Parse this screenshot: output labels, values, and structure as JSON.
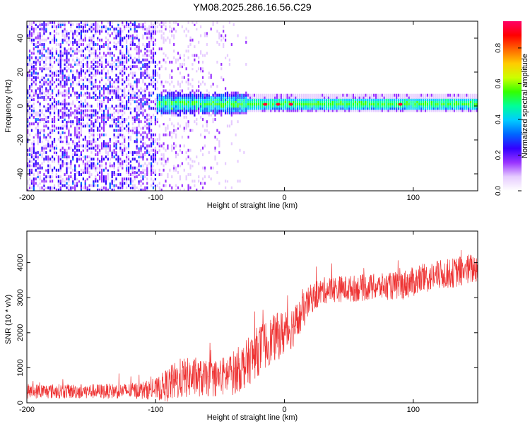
{
  "title": "YM08.2025.286.16.56.C29",
  "chart_data": [
    {
      "type": "heatmap",
      "title": "YM08.2025.286.16.56.C29",
      "xlabel": "Height of straight line (km)",
      "ylabel": "Frequency (Hz)",
      "xlim": [
        -200,
        150
      ],
      "ylim": [
        -50,
        50
      ],
      "xticks": [
        -200,
        -100,
        0,
        100
      ],
      "yticks": [
        -40,
        -20,
        0,
        20,
        40
      ],
      "colorbar": {
        "label": "Normalized spectral amplitude",
        "range": [
          0,
          0.95
        ],
        "ticks": [
          0.0,
          0.2,
          0.4,
          0.6,
          0.8
        ],
        "tick_labels": [
          "0.0",
          "0.2",
          "0.4",
          "0.6",
          "0.8"
        ],
        "colormap": [
          "#ffffff",
          "#e6ccff",
          "#9933ff",
          "#3300ff",
          "#0066ff",
          "#00ccff",
          "#00ff99",
          "#33ff00",
          "#ccff00",
          "#ffcc00",
          "#ff6600",
          "#ff0000",
          "#ff0066"
        ]
      },
      "features": {
        "noise_region_x": [
          -200,
          -100
        ],
        "sparse_region_x": [
          -100,
          -30
        ],
        "signal_band_center_hz": 1,
        "signal_band_halfwidth_hz": 3,
        "signal_start_x": -100,
        "peak_hotspots_x": [
          -15,
          -5,
          5,
          90
        ]
      }
    },
    {
      "type": "line",
      "xlabel": "Height of straight line (km)",
      "ylabel": "SNR (10 * v/v)",
      "xlim": [
        -200,
        150
      ],
      "ylim": [
        0,
        4900
      ],
      "xticks": [
        -200,
        -100,
        0,
        100
      ],
      "yticks": [
        0,
        1000,
        2000,
        3000,
        4000
      ],
      "series": [
        {
          "name": "SNR",
          "color": "#ee3333",
          "x": [
            -200,
            -180,
            -160,
            -140,
            -120,
            -100,
            -90,
            -80,
            -70,
            -60,
            -50,
            -40,
            -30,
            -20,
            -10,
            0,
            10,
            20,
            30,
            40,
            50,
            60,
            70,
            80,
            90,
            100,
            110,
            120,
            130,
            140,
            150
          ],
          "values": [
            330,
            330,
            330,
            330,
            340,
            380,
            520,
            700,
            720,
            680,
            720,
            850,
            1100,
            1500,
            1800,
            2000,
            2300,
            2950,
            3200,
            3250,
            3250,
            3280,
            3300,
            3320,
            3350,
            3450,
            3550,
            3650,
            3700,
            3780,
            3850
          ],
          "noise_amplitude": [
            250,
            250,
            250,
            250,
            260,
            350,
            600,
            700,
            650,
            600,
            650,
            750,
            800,
            850,
            800,
            800,
            700,
            500,
            450,
            450,
            450,
            450,
            450,
            450,
            500,
            500,
            500,
            500,
            500,
            550,
            500
          ]
        }
      ]
    }
  ]
}
